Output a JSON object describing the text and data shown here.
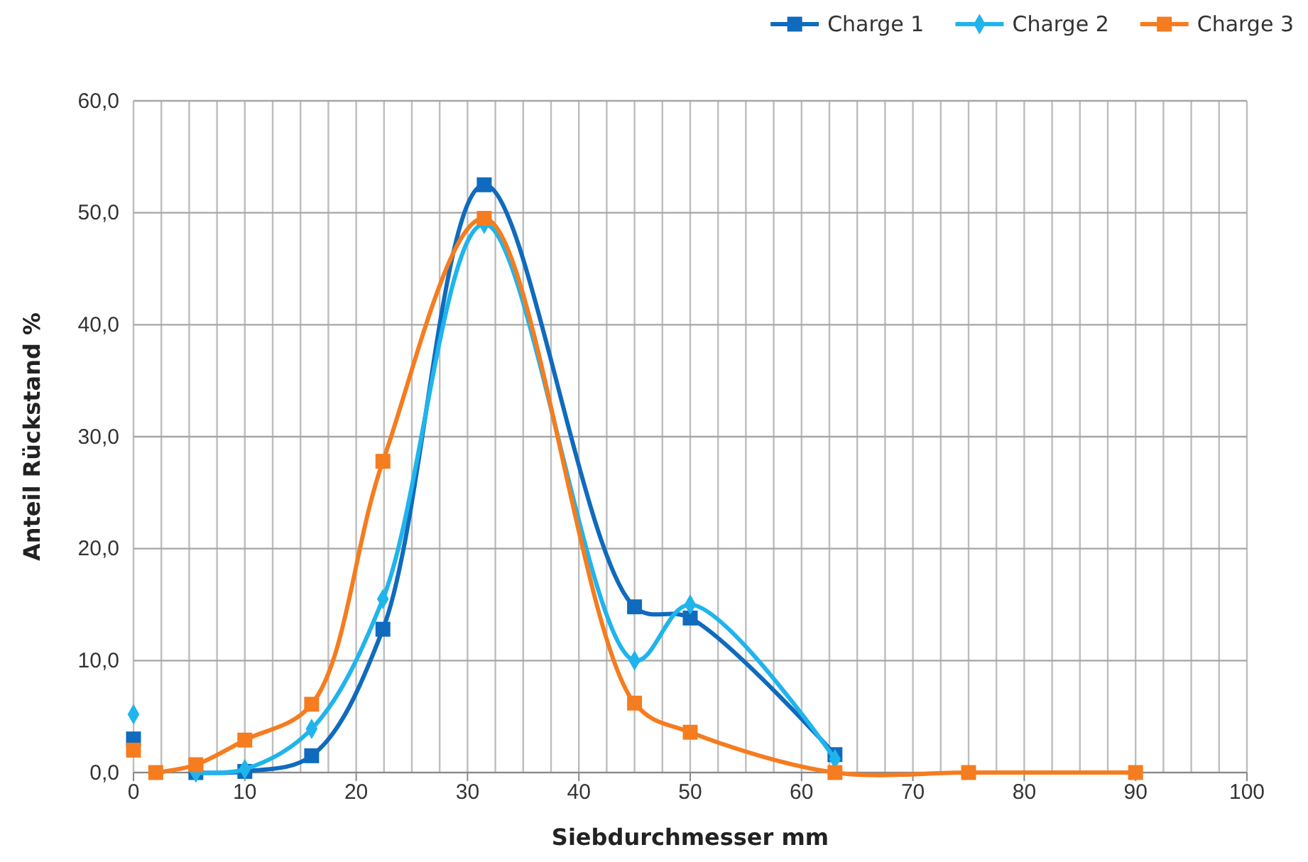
{
  "chart_data": {
    "type": "line",
    "xlabel": "Siebdurchmesser mm",
    "ylabel": "Anteil Rückstand %",
    "xlim": [
      0,
      100
    ],
    "ylim": [
      0,
      60
    ],
    "xticks": [
      0,
      {
        "value": 2.5,
        "label": null
      },
      {
        "value": 5,
        "label": null
      },
      {
        "value": 7.5,
        "label": null
      },
      10,
      {
        "value": 12.5,
        "label": null
      },
      {
        "value": 15,
        "label": null
      },
      {
        "value": 17.5,
        "label": null
      },
      20,
      {
        "value": 22.5,
        "label": null
      },
      {
        "value": 25,
        "label": null
      },
      {
        "value": 27.5,
        "label": null
      },
      30,
      {
        "value": 32.5,
        "label": null
      },
      {
        "value": 35,
        "label": null
      },
      {
        "value": 37.5,
        "label": null
      },
      40,
      {
        "value": 42.5,
        "label": null
      },
      {
        "value": 45,
        "label": null
      },
      {
        "value": 47.5,
        "label": null
      },
      50,
      {
        "value": 52.5,
        "label": null
      },
      {
        "value": 55,
        "label": null
      },
      {
        "value": 57.5,
        "label": null
      },
      60,
      {
        "value": 62.5,
        "label": null
      },
      {
        "value": 65,
        "label": null
      },
      {
        "value": 67.5,
        "label": null
      },
      70,
      {
        "value": 72.5,
        "label": null
      },
      {
        "value": 75,
        "label": null
      },
      {
        "value": 77.5,
        "label": null
      },
      80,
      {
        "value": 82.5,
        "label": null
      },
      {
        "value": 85,
        "label": null
      },
      {
        "value": 87.5,
        "label": null
      },
      90,
      {
        "value": 92.5,
        "label": null
      },
      {
        "value": 95,
        "label": null
      },
      {
        "value": 97.5,
        "label": null
      },
      100
    ],
    "yticks": [
      {
        "value": 0,
        "label": "0,0"
      },
      {
        "value": 10,
        "label": "10,0"
      },
      {
        "value": 20,
        "label": "20,0"
      },
      {
        "value": 30,
        "label": "30,0"
      },
      {
        "value": 40,
        "label": "40,0"
      },
      {
        "value": 50,
        "label": "50,0"
      },
      {
        "value": 60,
        "label": "60,0"
      }
    ],
    "grid": true,
    "legend": "top right",
    "series": [
      {
        "name": "Charge 1",
        "color": "#0f6bbd",
        "marker": "square",
        "x": [
          5.6,
          10,
          16,
          22.4,
          31.5,
          45,
          50,
          63
        ],
        "values": [
          0,
          0.1,
          1.5,
          12.8,
          52.5,
          14.8,
          13.8,
          1.6
        ]
      },
      {
        "name": "Charge 2",
        "color": "#20b4ec",
        "marker": "diamond",
        "x": [
          5.6,
          10,
          16,
          22.4,
          31.5,
          45,
          50,
          63
        ],
        "values": [
          0,
          0.3,
          3.9,
          15.5,
          49.0,
          10.0,
          15.0,
          1.2
        ]
      },
      {
        "name": "Charge 3",
        "color": "#f57c1f",
        "marker": "square",
        "x": [
          2,
          5.6,
          10,
          16,
          22.4,
          31.5,
          45,
          50,
          63,
          75,
          90
        ],
        "values": [
          0,
          0.7,
          2.9,
          6.1,
          27.8,
          49.5,
          6.2,
          3.6,
          0,
          0,
          0
        ]
      },
      {
        "type": "scatter",
        "color": "#0f6bbd",
        "marker": "square",
        "x": [
          0
        ],
        "values": [
          3.0
        ]
      },
      {
        "type": "scatter",
        "color": "#20b4ec",
        "marker": "diamond",
        "x": [
          0
        ],
        "values": [
          5.2
        ]
      },
      {
        "type": "scatter",
        "color": "#f57c1f",
        "marker": "square",
        "x": [
          0
        ],
        "values": [
          2.0
        ]
      }
    ]
  }
}
